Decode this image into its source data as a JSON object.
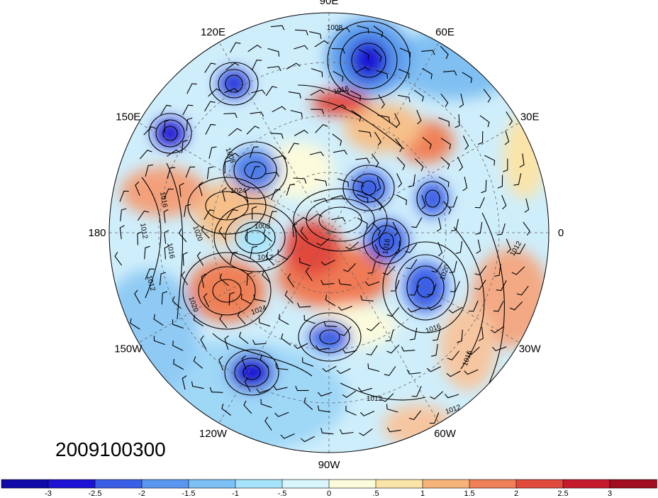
{
  "map": {
    "projection": "polar-stereographic-north",
    "longitude_labels": [
      {
        "text": "90E",
        "lon": 90
      },
      {
        "text": "60E",
        "lon": 60
      },
      {
        "text": "30E",
        "lon": 30
      },
      {
        "text": "0",
        "lon": 0
      },
      {
        "text": "30W",
        "lon": -30
      },
      {
        "text": "60W",
        "lon": -60
      },
      {
        "text": "90W",
        "lon": -90
      },
      {
        "text": "120W",
        "lon": -120
      },
      {
        "text": "150W",
        "lon": -150
      },
      {
        "text": "180",
        "lon": 180
      },
      {
        "text": "150E",
        "lon": 150
      },
      {
        "text": "120E",
        "lon": 120
      }
    ],
    "contour_labels": [
      "1008",
      "1016",
      "1008",
      "1024",
      "1016",
      "1012",
      "1016",
      "1008",
      "1020",
      "1012",
      "1012",
      "1024",
      "1020",
      "1016",
      "1016",
      "1016",
      "1012",
      "1012",
      "1012",
      "1020"
    ],
    "date_stamp": "2009100300"
  },
  "colorbar": {
    "ticks": [
      "-3",
      "-2.5",
      "-2",
      "-1.5",
      "-1",
      "-.5",
      "0",
      ".5",
      "1",
      "1.5",
      "2",
      "2.5",
      "3"
    ],
    "colors": [
      "#1e13d4",
      "#3a5fe6",
      "#5a96f0",
      "#7cc0f6",
      "#a6e4fb",
      "#d8f6fb",
      "#fcfbdc",
      "#fbe4a8",
      "#f6b47a",
      "#ef8057",
      "#e24a3c",
      "#c7192c",
      "#a10c1e"
    ]
  }
}
